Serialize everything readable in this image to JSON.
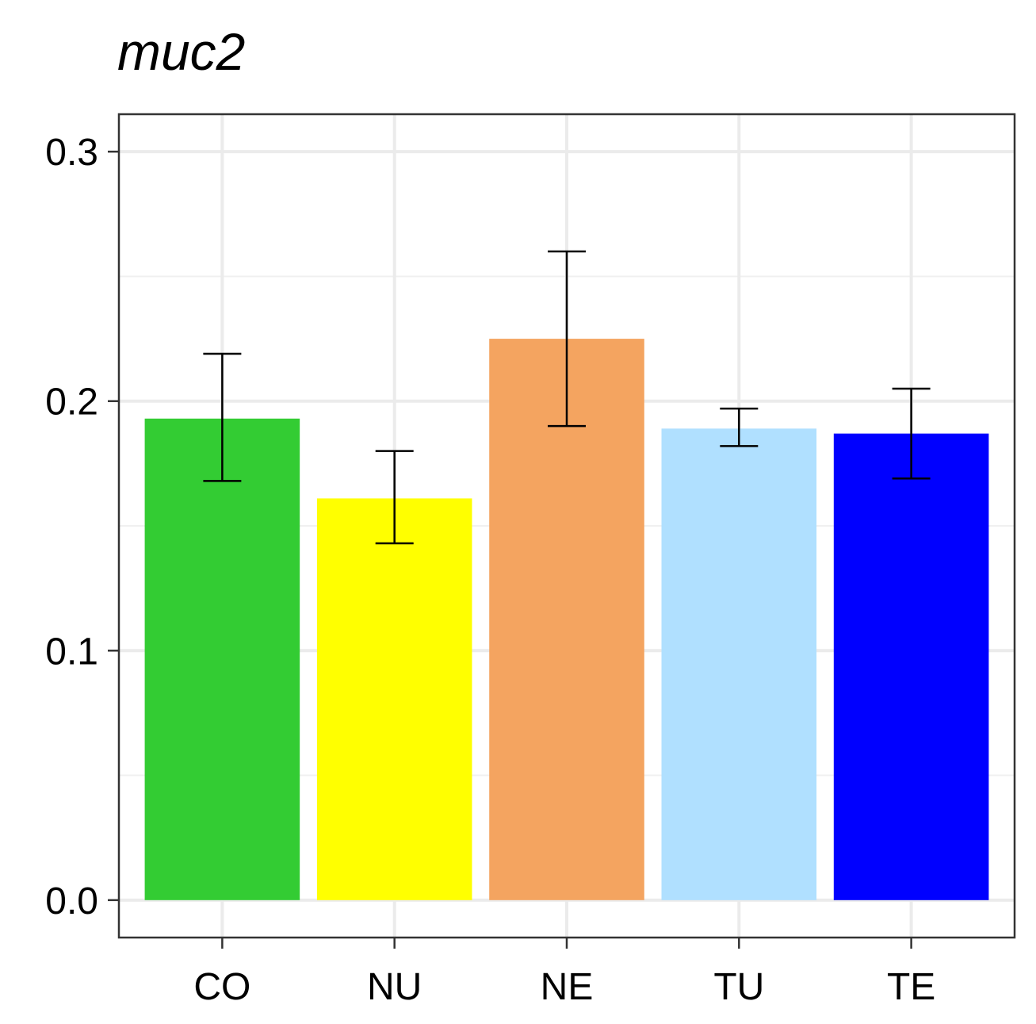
{
  "chart_data": {
    "type": "bar",
    "title": "muc2",
    "xlabel": "",
    "ylabel": "",
    "categories": [
      "CO",
      "NU",
      "NE",
      "TU",
      "TE"
    ],
    "values": [
      0.193,
      0.161,
      0.225,
      0.189,
      0.187
    ],
    "error_bars": {
      "lower": [
        0.168,
        0.143,
        0.19,
        0.182,
        0.169
      ],
      "upper": [
        0.219,
        0.18,
        0.26,
        0.197,
        0.205
      ]
    },
    "colors": [
      "#33cc33",
      "#ffff00",
      "#f4a460",
      "#b0e0ff",
      "#0000ff"
    ],
    "ylim": [
      -0.015,
      0.315
    ],
    "yticks": [
      0.0,
      0.1,
      0.2,
      0.3
    ],
    "ytick_labels": [
      "0.0",
      "0.1",
      "0.2",
      "0.3"
    ],
    "grid": true,
    "legend": "none"
  }
}
